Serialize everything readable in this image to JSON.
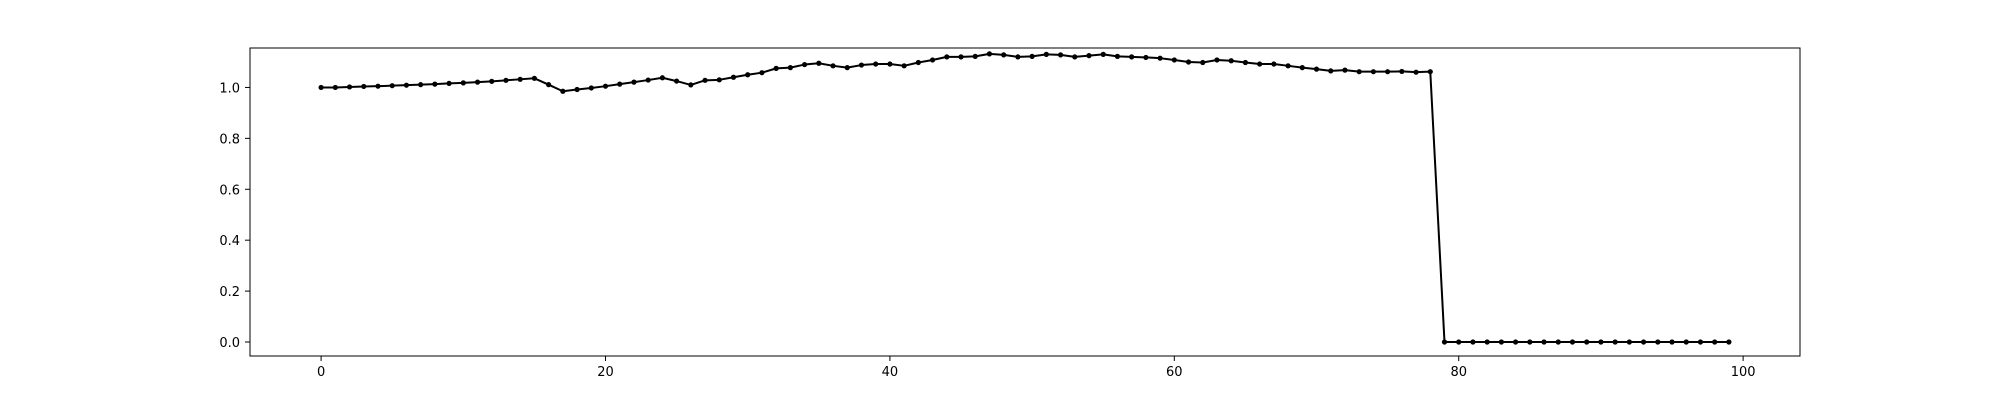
{
  "chart_data": {
    "type": "line",
    "title": "",
    "xlabel": "",
    "ylabel": "",
    "xlim": [
      -5,
      104
    ],
    "ylim": [
      -0.055,
      1.155
    ],
    "xticks": [
      0,
      20,
      40,
      60,
      80,
      100
    ],
    "xtick_labels": [
      "0",
      "20",
      "40",
      "60",
      "80",
      "100"
    ],
    "yticks": [
      0.0,
      0.2,
      0.4,
      0.6,
      0.8,
      1.0
    ],
    "ytick_labels": [
      "0.0",
      "0.2",
      "0.4",
      "0.6",
      "0.8",
      "1.0"
    ],
    "grid": false,
    "series": [
      {
        "color": "#000000",
        "marker": "dot",
        "x": [
          0,
          1,
          2,
          3,
          4,
          5,
          6,
          7,
          8,
          9,
          10,
          11,
          12,
          13,
          14,
          15,
          16,
          17,
          18,
          19,
          20,
          21,
          22,
          23,
          24,
          25,
          26,
          27,
          28,
          29,
          30,
          31,
          32,
          33,
          34,
          35,
          36,
          37,
          38,
          39,
          40,
          41,
          42,
          43,
          44,
          45,
          46,
          47,
          48,
          49,
          50,
          51,
          52,
          53,
          54,
          55,
          56,
          57,
          58,
          59,
          60,
          61,
          62,
          63,
          64,
          65,
          66,
          67,
          68,
          69,
          70,
          71,
          72,
          73,
          74,
          75,
          76,
          77,
          78,
          79,
          80,
          81,
          82,
          83,
          84,
          85,
          86,
          87,
          88,
          89,
          90,
          91,
          92,
          93,
          94,
          95,
          96,
          97,
          98,
          99
        ],
        "y": [
          1.0,
          1.0,
          1.002,
          1.004,
          1.005,
          1.007,
          1.009,
          1.011,
          1.013,
          1.016,
          1.018,
          1.021,
          1.024,
          1.028,
          1.032,
          1.036,
          1.011,
          0.985,
          0.992,
          0.998,
          1.005,
          1.013,
          1.021,
          1.029,
          1.038,
          1.025,
          1.01,
          1.028,
          1.03,
          1.04,
          1.05,
          1.058,
          1.075,
          1.078,
          1.09,
          1.095,
          1.085,
          1.078,
          1.088,
          1.092,
          1.092,
          1.085,
          1.098,
          1.108,
          1.12,
          1.12,
          1.122,
          1.132,
          1.128,
          1.12,
          1.122,
          1.13,
          1.128,
          1.12,
          1.125,
          1.13,
          1.122,
          1.12,
          1.118,
          1.115,
          1.108,
          1.1,
          1.098,
          1.108,
          1.105,
          1.098,
          1.092,
          1.092,
          1.085,
          1.078,
          1.072,
          1.065,
          1.068,
          1.062,
          1.062,
          1.062,
          1.063,
          1.06,
          1.062,
          0.0,
          0.0,
          0.0,
          0.0,
          0.0,
          0.0,
          0.0,
          0.0,
          0.0,
          0.0,
          0.0,
          0.0,
          0.0,
          0.0,
          0.0,
          0.0,
          0.0,
          0.0,
          0.0,
          0.0,
          0.0
        ]
      }
    ]
  }
}
